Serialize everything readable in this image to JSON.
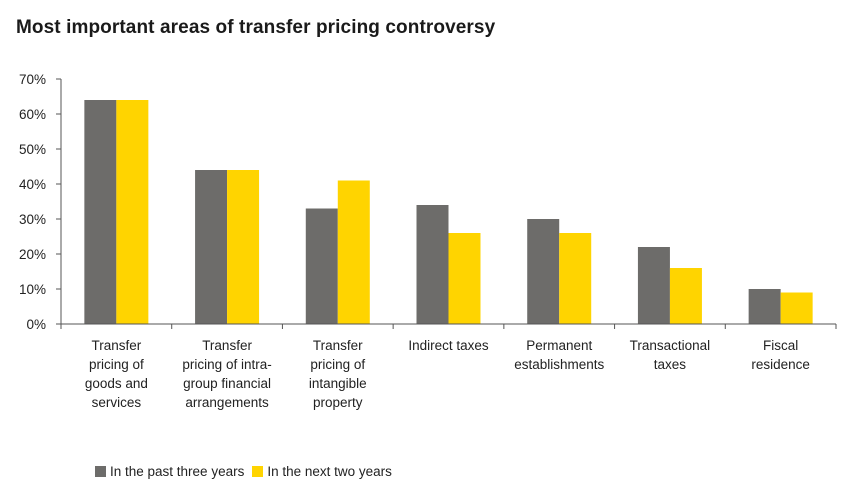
{
  "chart_data": {
    "type": "bar",
    "title": "Most important areas of transfer pricing controversy",
    "categories": [
      "Transfer pricing of goods and services",
      "Transfer pricing of intra-group financial arrangements",
      "Transfer pricing of intangible property",
      "Indirect taxes",
      "Permanent establishments",
      "Transactional taxes",
      "Fiscal residence"
    ],
    "category_lines": [
      [
        "Transfer",
        "pricing of",
        "goods and",
        "services"
      ],
      [
        "Transfer",
        "pricing of intra-",
        "group financial",
        "arrangements"
      ],
      [
        "Transfer",
        "pricing of",
        "intangible",
        "property"
      ],
      [
        "Indirect taxes"
      ],
      [
        "Permanent",
        "establishments"
      ],
      [
        "Transactional",
        "taxes"
      ],
      [
        "Fiscal",
        "residence"
      ]
    ],
    "series": [
      {
        "name": "In the past three years",
        "color": "#6d6c6a",
        "values": [
          64,
          44,
          33,
          34,
          30,
          22,
          10
        ]
      },
      {
        "name": "In the next two years",
        "color": "#ffd400",
        "values": [
          64,
          44,
          41,
          26,
          26,
          16,
          9
        ]
      }
    ],
    "ylim": [
      0,
      70
    ],
    "yticks": [
      0,
      10,
      20,
      30,
      40,
      50,
      60,
      70
    ],
    "ytick_labels": [
      "0%",
      "10%",
      "20%",
      "30%",
      "40%",
      "50%",
      "60%",
      "70%"
    ],
    "xlabel": "",
    "ylabel": "",
    "grid": false,
    "legend_position": "bottom-left"
  }
}
